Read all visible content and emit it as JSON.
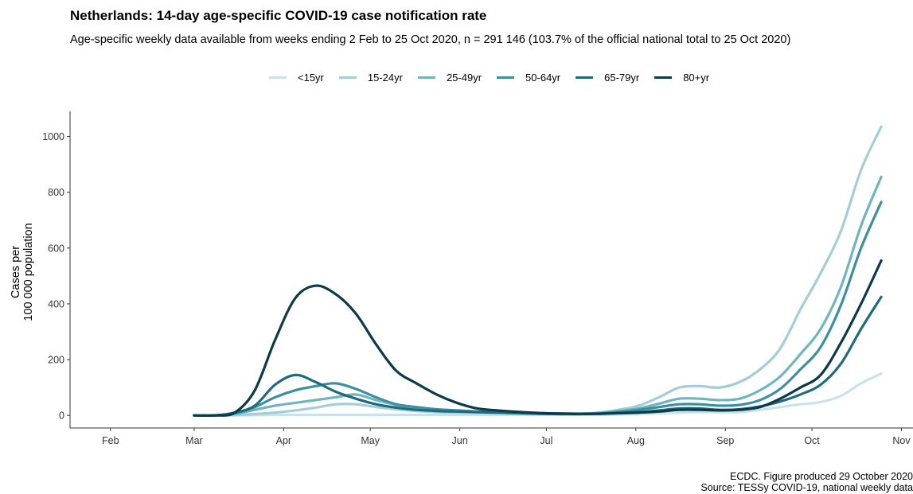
{
  "chart_data": {
    "type": "line",
    "title": "Netherlands: 14-day age-specific COVID-19 case notification rate",
    "subtitle": "Age-specific weekly data available from weeks ending 2 Feb to 25 Oct 2020, n = 291 146 (103.7% of the official national total to 25 Oct 2020)",
    "ylabel_line1": "Cases per",
    "ylabel_line2": "100 000 population",
    "xlabel": "",
    "x_ticks": [
      "Feb",
      "Mar",
      "Apr",
      "May",
      "Jun",
      "Jul",
      "Aug",
      "Sep",
      "Oct",
      "Nov"
    ],
    "y_ticks": [
      "0",
      "200",
      "400",
      "600",
      "800",
      "1000"
    ],
    "xlim": [
      "2020-01-18",
      "2020-11-05"
    ],
    "ylim": [
      -45,
      1090
    ],
    "legend_position": "top",
    "grid": false,
    "dates": [
      "2020-03-01",
      "2020-03-08",
      "2020-03-15",
      "2020-03-22",
      "2020-03-29",
      "2020-04-05",
      "2020-04-12",
      "2020-04-19",
      "2020-04-26",
      "2020-05-03",
      "2020-05-10",
      "2020-05-17",
      "2020-05-24",
      "2020-05-31",
      "2020-06-07",
      "2020-06-14",
      "2020-06-21",
      "2020-06-28",
      "2020-07-05",
      "2020-07-12",
      "2020-07-19",
      "2020-07-26",
      "2020-08-02",
      "2020-08-09",
      "2020-08-16",
      "2020-08-23",
      "2020-08-30",
      "2020-09-06",
      "2020-09-13",
      "2020-09-20",
      "2020-09-27",
      "2020-10-04",
      "2020-10-11",
      "2020-10-18",
      "2020-10-25"
    ],
    "series": [
      {
        "name": "<15yr",
        "color": "#c9e3ec",
        "values": [
          0,
          0,
          0,
          1,
          2,
          2,
          2,
          2,
          2,
          2,
          2,
          2,
          2,
          2,
          2,
          2,
          2,
          2,
          2,
          2,
          2,
          3,
          5,
          7,
          10,
          12,
          11,
          12,
          20,
          30,
          40,
          48,
          70,
          115,
          150
        ]
      },
      {
        "name": "15-24yr",
        "color": "#a3cdd7",
        "values": [
          0,
          0,
          2,
          5,
          10,
          18,
          28,
          40,
          40,
          30,
          22,
          16,
          12,
          10,
          9,
          8,
          7,
          6,
          6,
          6,
          10,
          20,
          35,
          65,
          100,
          105,
          100,
          120,
          165,
          240,
          380,
          510,
          660,
          880,
          1035
        ]
      },
      {
        "name": "25-49yr",
        "color": "#6fb5c0",
        "values": [
          0,
          0,
          5,
          20,
          35,
          45,
          55,
          65,
          75,
          55,
          38,
          25,
          16,
          14,
          12,
          10,
          8,
          7,
          6,
          6,
          9,
          16,
          25,
          42,
          60,
          60,
          55,
          60,
          90,
          140,
          220,
          310,
          460,
          680,
          855
        ]
      },
      {
        "name": "50-64yr",
        "color": "#3b8fa1",
        "values": [
          0,
          0,
          8,
          30,
          65,
          90,
          105,
          115,
          95,
          65,
          40,
          30,
          22,
          18,
          14,
          11,
          9,
          7,
          6,
          5,
          7,
          12,
          20,
          30,
          40,
          40,
          35,
          38,
          55,
          95,
          165,
          245,
          395,
          600,
          765
        ]
      },
      {
        "name": "65-79yr",
        "color": "#1e6b7f",
        "values": [
          0,
          0,
          10,
          35,
          110,
          145,
          120,
          85,
          60,
          40,
          28,
          20,
          16,
          14,
          12,
          10,
          8,
          6,
          5,
          5,
          6,
          9,
          12,
          18,
          25,
          25,
          20,
          22,
          32,
          50,
          75,
          110,
          185,
          310,
          425
        ]
      },
      {
        "name": "80+yr",
        "color": "#0b3a4a",
        "values": [
          0,
          0,
          10,
          90,
          270,
          420,
          465,
          435,
          365,
          255,
          160,
          115,
          75,
          45,
          25,
          18,
          13,
          9,
          7,
          6,
          6,
          8,
          10,
          14,
          20,
          20,
          18,
          20,
          30,
          60,
          100,
          145,
          260,
          400,
          555
        ]
      }
    ]
  },
  "footer": {
    "line1": "ECDC. Figure produced 29 October 2020",
    "line2": "Source: TESSy COVID-19, national weekly data"
  }
}
